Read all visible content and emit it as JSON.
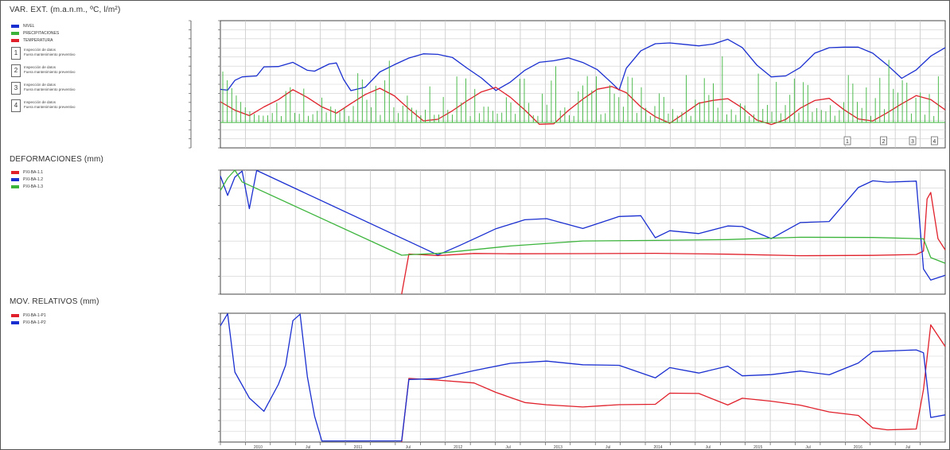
{
  "sections": {
    "s1_title": "VAR. EXT. (m.a.n.m., ºC, l/m²)",
    "s2_title": "DEFORMACIONES (mm)",
    "s3_title": "MOV. RELATIVOS (mm)"
  },
  "legend1": {
    "items": [
      {
        "label": "NIVEL",
        "color": "#1a2fd0"
      },
      {
        "label": "PRECIPITACIONES",
        "color": "#3cb43c"
      },
      {
        "label": "TEMPERATURA",
        "color": "#e0202a"
      }
    ],
    "notes": [
      {
        "num": "1",
        "line1": "Inspección de datos",
        "line2": "Fuera mantenimiento preventivo"
      },
      {
        "num": "2",
        "line1": "Inspección de datos",
        "line2": "Fuera mantenimiento preventivo"
      },
      {
        "num": "3",
        "line1": "Inspección de datos",
        "line2": "Fuera mantenimiento preventivo"
      },
      {
        "num": "4",
        "line1": "Inspección de datos",
        "line2": "Fuera mantenimiento preventivo"
      }
    ]
  },
  "legend2": {
    "items": [
      {
        "label": "PXI-BA-1.1",
        "color": "#e0202a"
      },
      {
        "label": "PXI-BA-1.2",
        "color": "#1a2fd0"
      },
      {
        "label": "PXI-BA-1.3",
        "color": "#3cb43c"
      }
    ]
  },
  "legend3": {
    "items": [
      {
        "label": "PXI-BA-1-P1",
        "color": "#e0202a"
      },
      {
        "label": "PXI-BA-1-P2",
        "color": "#1a2fd0"
      }
    ]
  },
  "chart_data": [
    {
      "type": "line",
      "title": "VAR. EXT. (m.a.n.m., ºC, l/m²)",
      "note": "Values read approximately from a low-resolution image; left and right axis tick labels are illegible.",
      "x_tick_labels": [
        "",
        "2010",
        "",
        "Jul",
        "",
        "2011",
        "",
        "Jul",
        "",
        "2012",
        "",
        "Jul",
        "",
        "2013",
        "",
        "Jul",
        "",
        "2014",
        "",
        "Jul",
        "",
        "2015",
        "",
        "Jul",
        "",
        "2016",
        "",
        "Jul",
        ""
      ],
      "y_ticks_left": [
        "",
        "",
        "",
        "",
        "",
        "",
        "",
        "",
        "",
        "",
        "",
        "",
        "",
        "",
        ""
      ],
      "y_ticks_right": [
        "",
        "",
        "",
        "",
        "",
        "",
        "",
        "",
        "",
        "",
        "",
        "",
        "",
        "",
        ""
      ],
      "ylim": [
        0,
        1
      ],
      "markers": [
        "1",
        "2",
        "3",
        "4"
      ],
      "marker_x": [
        0.865,
        0.915,
        0.955,
        0.985
      ],
      "series": [
        {
          "name": "NIVEL",
          "color": "#1a2fd0",
          "x": [
            0,
            0.01,
            0.02,
            0.03,
            0.05,
            0.06,
            0.08,
            0.1,
            0.12,
            0.13,
            0.15,
            0.16,
            0.17,
            0.18,
            0.2,
            0.22,
            0.24,
            0.26,
            0.28,
            0.3,
            0.32,
            0.34,
            0.36,
            0.38,
            0.4,
            0.42,
            0.44,
            0.46,
            0.48,
            0.5,
            0.52,
            0.54,
            0.55,
            0.56,
            0.58,
            0.6,
            0.62,
            0.64,
            0.66,
            0.68,
            0.7,
            0.72,
            0.74,
            0.76,
            0.78,
            0.8,
            0.82,
            0.84,
            0.86,
            0.88,
            0.9,
            0.92,
            0.94,
            0.96,
            0.98,
            1.0
          ],
          "y": [
            0.46,
            0.44,
            0.53,
            0.55,
            0.56,
            0.63,
            0.63,
            0.67,
            0.62,
            0.61,
            0.66,
            0.67,
            0.55,
            0.45,
            0.48,
            0.59,
            0.64,
            0.7,
            0.73,
            0.73,
            0.7,
            0.62,
            0.54,
            0.46,
            0.53,
            0.62,
            0.68,
            0.7,
            0.72,
            0.68,
            0.6,
            0.5,
            0.45,
            0.62,
            0.76,
            0.81,
            0.81,
            0.8,
            0.81,
            0.82,
            0.86,
            0.79,
            0.66,
            0.57,
            0.57,
            0.62,
            0.74,
            0.78,
            0.79,
            0.79,
            0.74,
            0.65,
            0.55,
            0.62,
            0.73,
            0.79
          ]
        },
        {
          "name": "TEMPERATURA",
          "color": "#e0202a",
          "x": [
            0,
            0.02,
            0.04,
            0.06,
            0.08,
            0.1,
            0.12,
            0.14,
            0.16,
            0.18,
            0.2,
            0.22,
            0.24,
            0.26,
            0.28,
            0.3,
            0.32,
            0.34,
            0.36,
            0.38,
            0.4,
            0.42,
            0.44,
            0.46,
            0.48,
            0.5,
            0.52,
            0.54,
            0.56,
            0.58,
            0.6,
            0.62,
            0.64,
            0.66,
            0.68,
            0.7,
            0.72,
            0.74,
            0.76,
            0.78,
            0.8,
            0.82,
            0.84,
            0.86,
            0.88,
            0.9,
            0.92,
            0.94,
            0.96,
            0.98,
            1.0
          ],
          "y": [
            0.36,
            0.3,
            0.26,
            0.33,
            0.39,
            0.46,
            0.4,
            0.33,
            0.28,
            0.34,
            0.42,
            0.46,
            0.4,
            0.3,
            0.2,
            0.22,
            0.3,
            0.38,
            0.44,
            0.48,
            0.4,
            0.3,
            0.2,
            0.18,
            0.28,
            0.38,
            0.45,
            0.48,
            0.42,
            0.32,
            0.24,
            0.2,
            0.28,
            0.36,
            0.38,
            0.4,
            0.32,
            0.22,
            0.18,
            0.22,
            0.3,
            0.36,
            0.38,
            0.3,
            0.22,
            0.2,
            0.28,
            0.36,
            0.42,
            0.38,
            0.3
          ]
        }
      ]
    },
    {
      "type": "line",
      "title": "DEFORMACIONES (mm)",
      "y_ticks": [
        "",
        "",
        "",
        "",
        "",
        "",
        "",
        ""
      ],
      "ylim": [
        0,
        1
      ],
      "series": [
        {
          "name": "PXI-BA-1.1",
          "color": "#e0202a",
          "x": [
            0.25,
            0.26,
            0.3,
            0.35,
            0.4,
            0.5,
            0.6,
            0.7,
            0.8,
            0.9,
            0.96,
            0.97,
            0.975,
            0.98,
            0.99,
            1.0
          ],
          "y": [
            0.0,
            0.31,
            0.31,
            0.32,
            0.32,
            0.32,
            0.32,
            0.32,
            0.32,
            0.32,
            0.32,
            0.35,
            0.78,
            0.82,
            0.45,
            0.35
          ]
        },
        {
          "name": "PXI-BA-1.2",
          "color": "#1a2fd0",
          "x": [
            0.0,
            0.01,
            0.02,
            0.03,
            0.04,
            0.05,
            0.3,
            0.33,
            0.36,
            0.38,
            0.42,
            0.45,
            0.5,
            0.55,
            0.58,
            0.6,
            0.62,
            0.66,
            0.7,
            0.72,
            0.76,
            0.8,
            0.84,
            0.88,
            0.9,
            0.92,
            0.96,
            0.97,
            0.98,
            1.0
          ],
          "y": [
            0.95,
            0.8,
            0.95,
            1.0,
            0.7,
            1.0,
            0.32,
            0.4,
            0.48,
            0.52,
            0.6,
            0.6,
            0.52,
            0.62,
            0.62,
            0.45,
            0.52,
            0.5,
            0.55,
            0.55,
            0.45,
            0.58,
            0.6,
            0.85,
            0.9,
            0.9,
            0.9,
            0.2,
            0.1,
            0.15
          ]
        },
        {
          "name": "PXI-BA-1.3",
          "color": "#3cb43c",
          "x": [
            0.0,
            0.01,
            0.02,
            0.03,
            0.25,
            0.26,
            0.3,
            0.4,
            0.5,
            0.6,
            0.7,
            0.8,
            0.9,
            0.96,
            0.97,
            0.98,
            1.0
          ],
          "y": [
            0.85,
            0.95,
            1.0,
            0.9,
            0.3,
            0.31,
            0.32,
            0.38,
            0.42,
            0.44,
            0.45,
            0.46,
            0.46,
            0.46,
            0.45,
            0.3,
            0.25
          ]
        }
      ]
    },
    {
      "type": "line",
      "title": "MOV. RELATIVOS (mm)",
      "y_ticks": [
        "",
        "",
        "",
        "",
        "",
        "",
        "",
        "",
        "",
        "",
        "",
        "",
        ""
      ],
      "ylim": [
        0,
        1
      ],
      "series": [
        {
          "name": "PXI-BA-1-P1",
          "color": "#e0202a",
          "x": [
            0.25,
            0.26,
            0.3,
            0.35,
            0.38,
            0.42,
            0.45,
            0.5,
            0.55,
            0.6,
            0.62,
            0.66,
            0.7,
            0.72,
            0.76,
            0.8,
            0.84,
            0.88,
            0.9,
            0.92,
            0.96,
            0.97,
            0.98,
            1.0
          ],
          "y": [
            0.0,
            0.48,
            0.48,
            0.45,
            0.38,
            0.3,
            0.28,
            0.27,
            0.3,
            0.3,
            0.38,
            0.38,
            0.3,
            0.34,
            0.32,
            0.28,
            0.22,
            0.2,
            0.1,
            0.09,
            0.09,
            0.4,
            0.9,
            0.75
          ]
        },
        {
          "name": "PXI-BA-1-P2",
          "color": "#1a2fd0",
          "x": [
            0.0,
            0.01,
            0.02,
            0.04,
            0.06,
            0.08,
            0.09,
            0.1,
            0.11,
            0.12,
            0.13,
            0.14,
            0.25,
            0.26,
            0.3,
            0.35,
            0.4,
            0.45,
            0.5,
            0.55,
            0.6,
            0.62,
            0.66,
            0.7,
            0.72,
            0.76,
            0.8,
            0.84,
            0.88,
            0.9,
            0.96,
            0.97,
            0.98,
            1.0
          ],
          "y": [
            0.9,
            1.0,
            0.55,
            0.35,
            0.25,
            0.45,
            0.6,
            0.95,
            1.0,
            0.5,
            0.2,
            0.0,
            0.0,
            0.48,
            0.48,
            0.55,
            0.62,
            0.64,
            0.6,
            0.6,
            0.5,
            0.58,
            0.55,
            0.58,
            0.5,
            0.52,
            0.54,
            0.52,
            0.6,
            0.7,
            0.71,
            0.7,
            0.2,
            0.22
          ]
        }
      ]
    }
  ]
}
